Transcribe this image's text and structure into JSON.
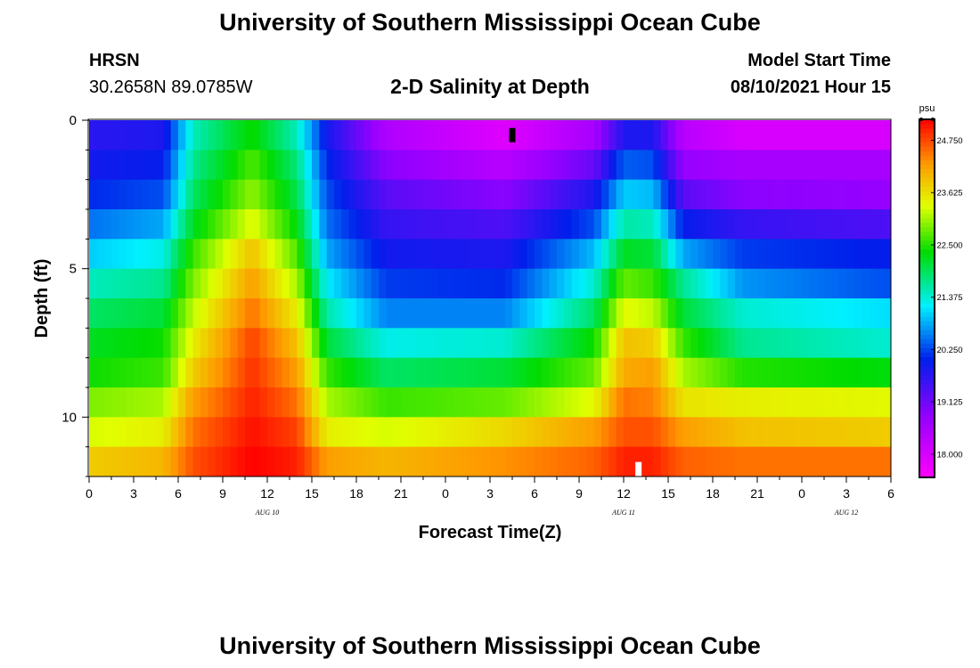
{
  "page": {
    "title_top": "University of Southern Mississippi Ocean Cube",
    "title_bottom": "University of Southern Mississippi Ocean Cube"
  },
  "station": {
    "name": "HRSN",
    "coords": "30.2658N  89.0785W"
  },
  "model": {
    "label": "Model Start Time",
    "time": "08/10/2021 Hour 15"
  },
  "chart_data": {
    "type": "heatmap",
    "title": "2-D Salinity at Depth",
    "xlabel": "Forecast Time(Z)",
    "ylabel": "Depth (ft)",
    "x_range_hours": [
      0,
      54
    ],
    "y_range_ft": [
      0,
      12
    ],
    "y_ticks": [
      0,
      5,
      10
    ],
    "x_ticks": [
      "0",
      "3",
      "6",
      "9",
      "12",
      "15",
      "18",
      "21",
      "0",
      "3",
      "6",
      "9",
      "12",
      "15",
      "18",
      "21",
      "0",
      "3",
      "6"
    ],
    "date_labels": [
      {
        "text": "AUG  10",
        "hour": 12
      },
      {
        "text": "AUG  11",
        "hour": 36
      },
      {
        "text": "AUG  12",
        "hour": 51
      }
    ],
    "markers": [
      {
        "hour": 28.5,
        "depth_ft": 0.5,
        "color": "#000000"
      },
      {
        "hour": 37,
        "depth_ft": 11.75,
        "color": "#ffffff"
      }
    ],
    "colorbar": {
      "unit": "psu",
      "min": 17.5,
      "max": 25.2,
      "ticks": [
        "18.000",
        "19.125",
        "20.250",
        "21.375",
        "22.500",
        "23.625",
        "24.750"
      ],
      "tick_values": [
        18.0,
        19.125,
        20.25,
        21.375,
        22.5,
        23.625,
        24.75
      ]
    },
    "depth_levels_ft": [
      0.5,
      1.5,
      2.5,
      3.5,
      4.5,
      5.5,
      6.5,
      7.5,
      8.5,
      9.5,
      10.5,
      11.5
    ],
    "profiles": [
      {
        "depth_ft": 0.5,
        "hours": [
          0,
          5,
          7,
          11,
          14,
          16,
          20,
          28,
          34,
          36,
          38,
          40,
          44,
          54
        ],
        "psu": [
          19.7,
          19.8,
          21.5,
          22.4,
          21.5,
          19.9,
          18.5,
          17.9,
          18.6,
          19.8,
          19.8,
          18.4,
          18.0,
          18.0
        ]
      },
      {
        "depth_ft": 1.5,
        "hours": [
          0,
          5,
          7,
          11,
          14,
          16,
          20,
          28,
          34,
          36,
          38,
          40,
          44,
          54
        ],
        "psu": [
          19.9,
          20.0,
          21.7,
          22.7,
          21.8,
          20.1,
          18.9,
          18.4,
          19.2,
          20.4,
          20.3,
          18.8,
          18.6,
          18.6
        ]
      },
      {
        "depth_ft": 2.5,
        "hours": [
          0,
          5,
          7,
          11,
          14,
          16,
          20,
          28,
          34,
          36,
          38,
          40,
          44,
          54
        ],
        "psu": [
          20.1,
          20.3,
          21.9,
          23.0,
          22.0,
          20.3,
          19.3,
          18.9,
          19.8,
          21.0,
          20.9,
          19.3,
          18.9,
          18.8
        ]
      },
      {
        "depth_ft": 3.5,
        "hours": [
          0,
          5,
          7,
          11,
          14,
          16,
          20,
          28,
          34,
          36,
          38,
          40,
          44,
          54
        ],
        "psu": [
          20.5,
          20.8,
          22.2,
          23.4,
          22.3,
          20.5,
          19.6,
          19.4,
          20.3,
          21.6,
          21.5,
          20.0,
          19.6,
          19.4
        ]
      },
      {
        "depth_ft": 4.5,
        "hours": [
          0,
          5,
          7,
          11,
          14,
          16,
          20,
          28,
          34,
          36,
          38,
          40,
          44,
          54
        ],
        "psu": [
          21.0,
          21.3,
          22.6,
          23.9,
          22.7,
          20.8,
          19.9,
          19.8,
          20.9,
          22.2,
          22.1,
          20.8,
          20.2,
          20.0
        ]
      },
      {
        "depth_ft": 5.5,
        "hours": [
          0,
          5,
          7,
          11,
          14,
          16,
          20,
          28,
          34,
          36,
          38,
          40,
          44,
          54
        ],
        "psu": [
          21.5,
          21.7,
          22.9,
          24.2,
          23.1,
          21.2,
          20.2,
          20.1,
          21.4,
          22.8,
          22.6,
          21.7,
          20.7,
          20.3
        ]
      },
      {
        "depth_ft": 6.5,
        "hours": [
          0,
          5,
          7,
          11,
          14,
          16,
          20,
          28,
          34,
          36,
          38,
          40,
          44,
          54
        ],
        "psu": [
          21.9,
          22.1,
          23.2,
          24.5,
          23.5,
          21.6,
          20.6,
          20.6,
          21.9,
          23.4,
          23.2,
          22.1,
          21.4,
          21.1
        ]
      },
      {
        "depth_ft": 7.5,
        "hours": [
          0,
          5,
          7,
          11,
          14,
          16,
          20,
          28,
          34,
          36,
          38,
          40,
          44,
          54
        ],
        "psu": [
          22.2,
          22.4,
          23.5,
          24.8,
          23.9,
          22.1,
          21.3,
          21.4,
          22.4,
          23.9,
          23.8,
          22.6,
          21.7,
          21.4
        ]
      },
      {
        "depth_ft": 8.5,
        "hours": [
          0,
          5,
          7,
          11,
          14,
          16,
          20,
          28,
          34,
          36,
          38,
          40,
          44,
          54
        ],
        "psu": [
          22.4,
          22.6,
          23.8,
          24.9,
          24.2,
          22.6,
          21.9,
          22.1,
          22.8,
          24.1,
          24.2,
          23.1,
          22.5,
          22.3
        ]
      },
      {
        "depth_ft": 9.5,
        "hours": [
          0,
          5,
          7,
          11,
          14,
          16,
          20,
          28,
          34,
          36,
          38,
          40,
          44,
          54
        ],
        "psu": [
          22.9,
          23.1,
          24.2,
          25.0,
          24.5,
          23.1,
          22.6,
          22.8,
          23.4,
          24.5,
          24.4,
          23.6,
          23.5,
          23.4
        ]
      },
      {
        "depth_ft": 10.5,
        "hours": [
          0,
          5,
          7,
          11,
          14,
          16,
          20,
          28,
          34,
          36,
          38,
          40,
          44,
          54
        ],
        "psu": [
          23.3,
          23.5,
          24.5,
          25.1,
          24.8,
          23.5,
          23.3,
          23.7,
          24.2,
          24.7,
          24.7,
          24.2,
          23.9,
          23.8
        ]
      },
      {
        "depth_ft": 11.5,
        "hours": [
          0,
          5,
          7,
          11,
          14,
          16,
          20,
          28,
          34,
          36,
          38,
          40,
          44,
          54
        ],
        "psu": [
          23.8,
          24.0,
          24.7,
          25.2,
          25.0,
          24.2,
          24.0,
          24.3,
          24.6,
          25.0,
          25.0,
          24.6,
          24.5,
          24.5
        ]
      }
    ]
  }
}
